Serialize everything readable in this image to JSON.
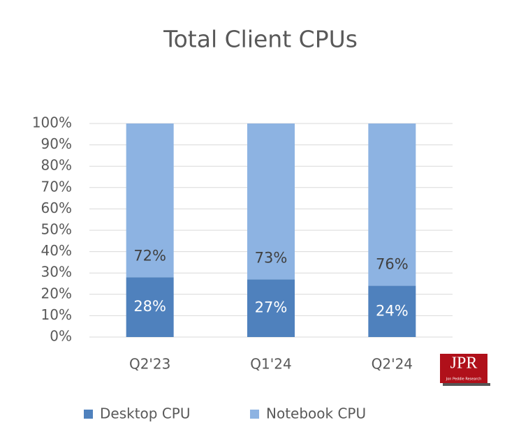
{
  "chart_data": {
    "type": "stacked_bar",
    "title": "Total Client CPUs",
    "categories": [
      "Q2'23",
      "Q1'24",
      "Q2'24"
    ],
    "series": [
      {
        "name": "Desktop CPU",
        "color": "#4f81bd",
        "values": [
          28,
          27,
          24
        ],
        "value_labels": [
          "28%",
          "27%",
          "24%"
        ]
      },
      {
        "name": "Notebook CPU",
        "color": "#8db3e2",
        "values": [
          72,
          73,
          76
        ],
        "value_labels": [
          "72%",
          "73%",
          "76%"
        ]
      }
    ],
    "ylim": [
      0,
      100
    ],
    "yticks": [
      {
        "value": 0,
        "label": "0%"
      },
      {
        "value": 10,
        "label": "10%"
      },
      {
        "value": 20,
        "label": "20%"
      },
      {
        "value": 30,
        "label": "30%"
      },
      {
        "value": 40,
        "label": "40%"
      },
      {
        "value": 50,
        "label": "50%"
      },
      {
        "value": 60,
        "label": "60%"
      },
      {
        "value": 70,
        "label": "70%"
      },
      {
        "value": 80,
        "label": "80%"
      },
      {
        "value": 90,
        "label": "90%"
      },
      {
        "value": 100,
        "label": "100%"
      }
    ],
    "grid": true,
    "legend": "bottom",
    "logo": {
      "text": "JPR",
      "caption": "Jon Peddie Research"
    }
  }
}
